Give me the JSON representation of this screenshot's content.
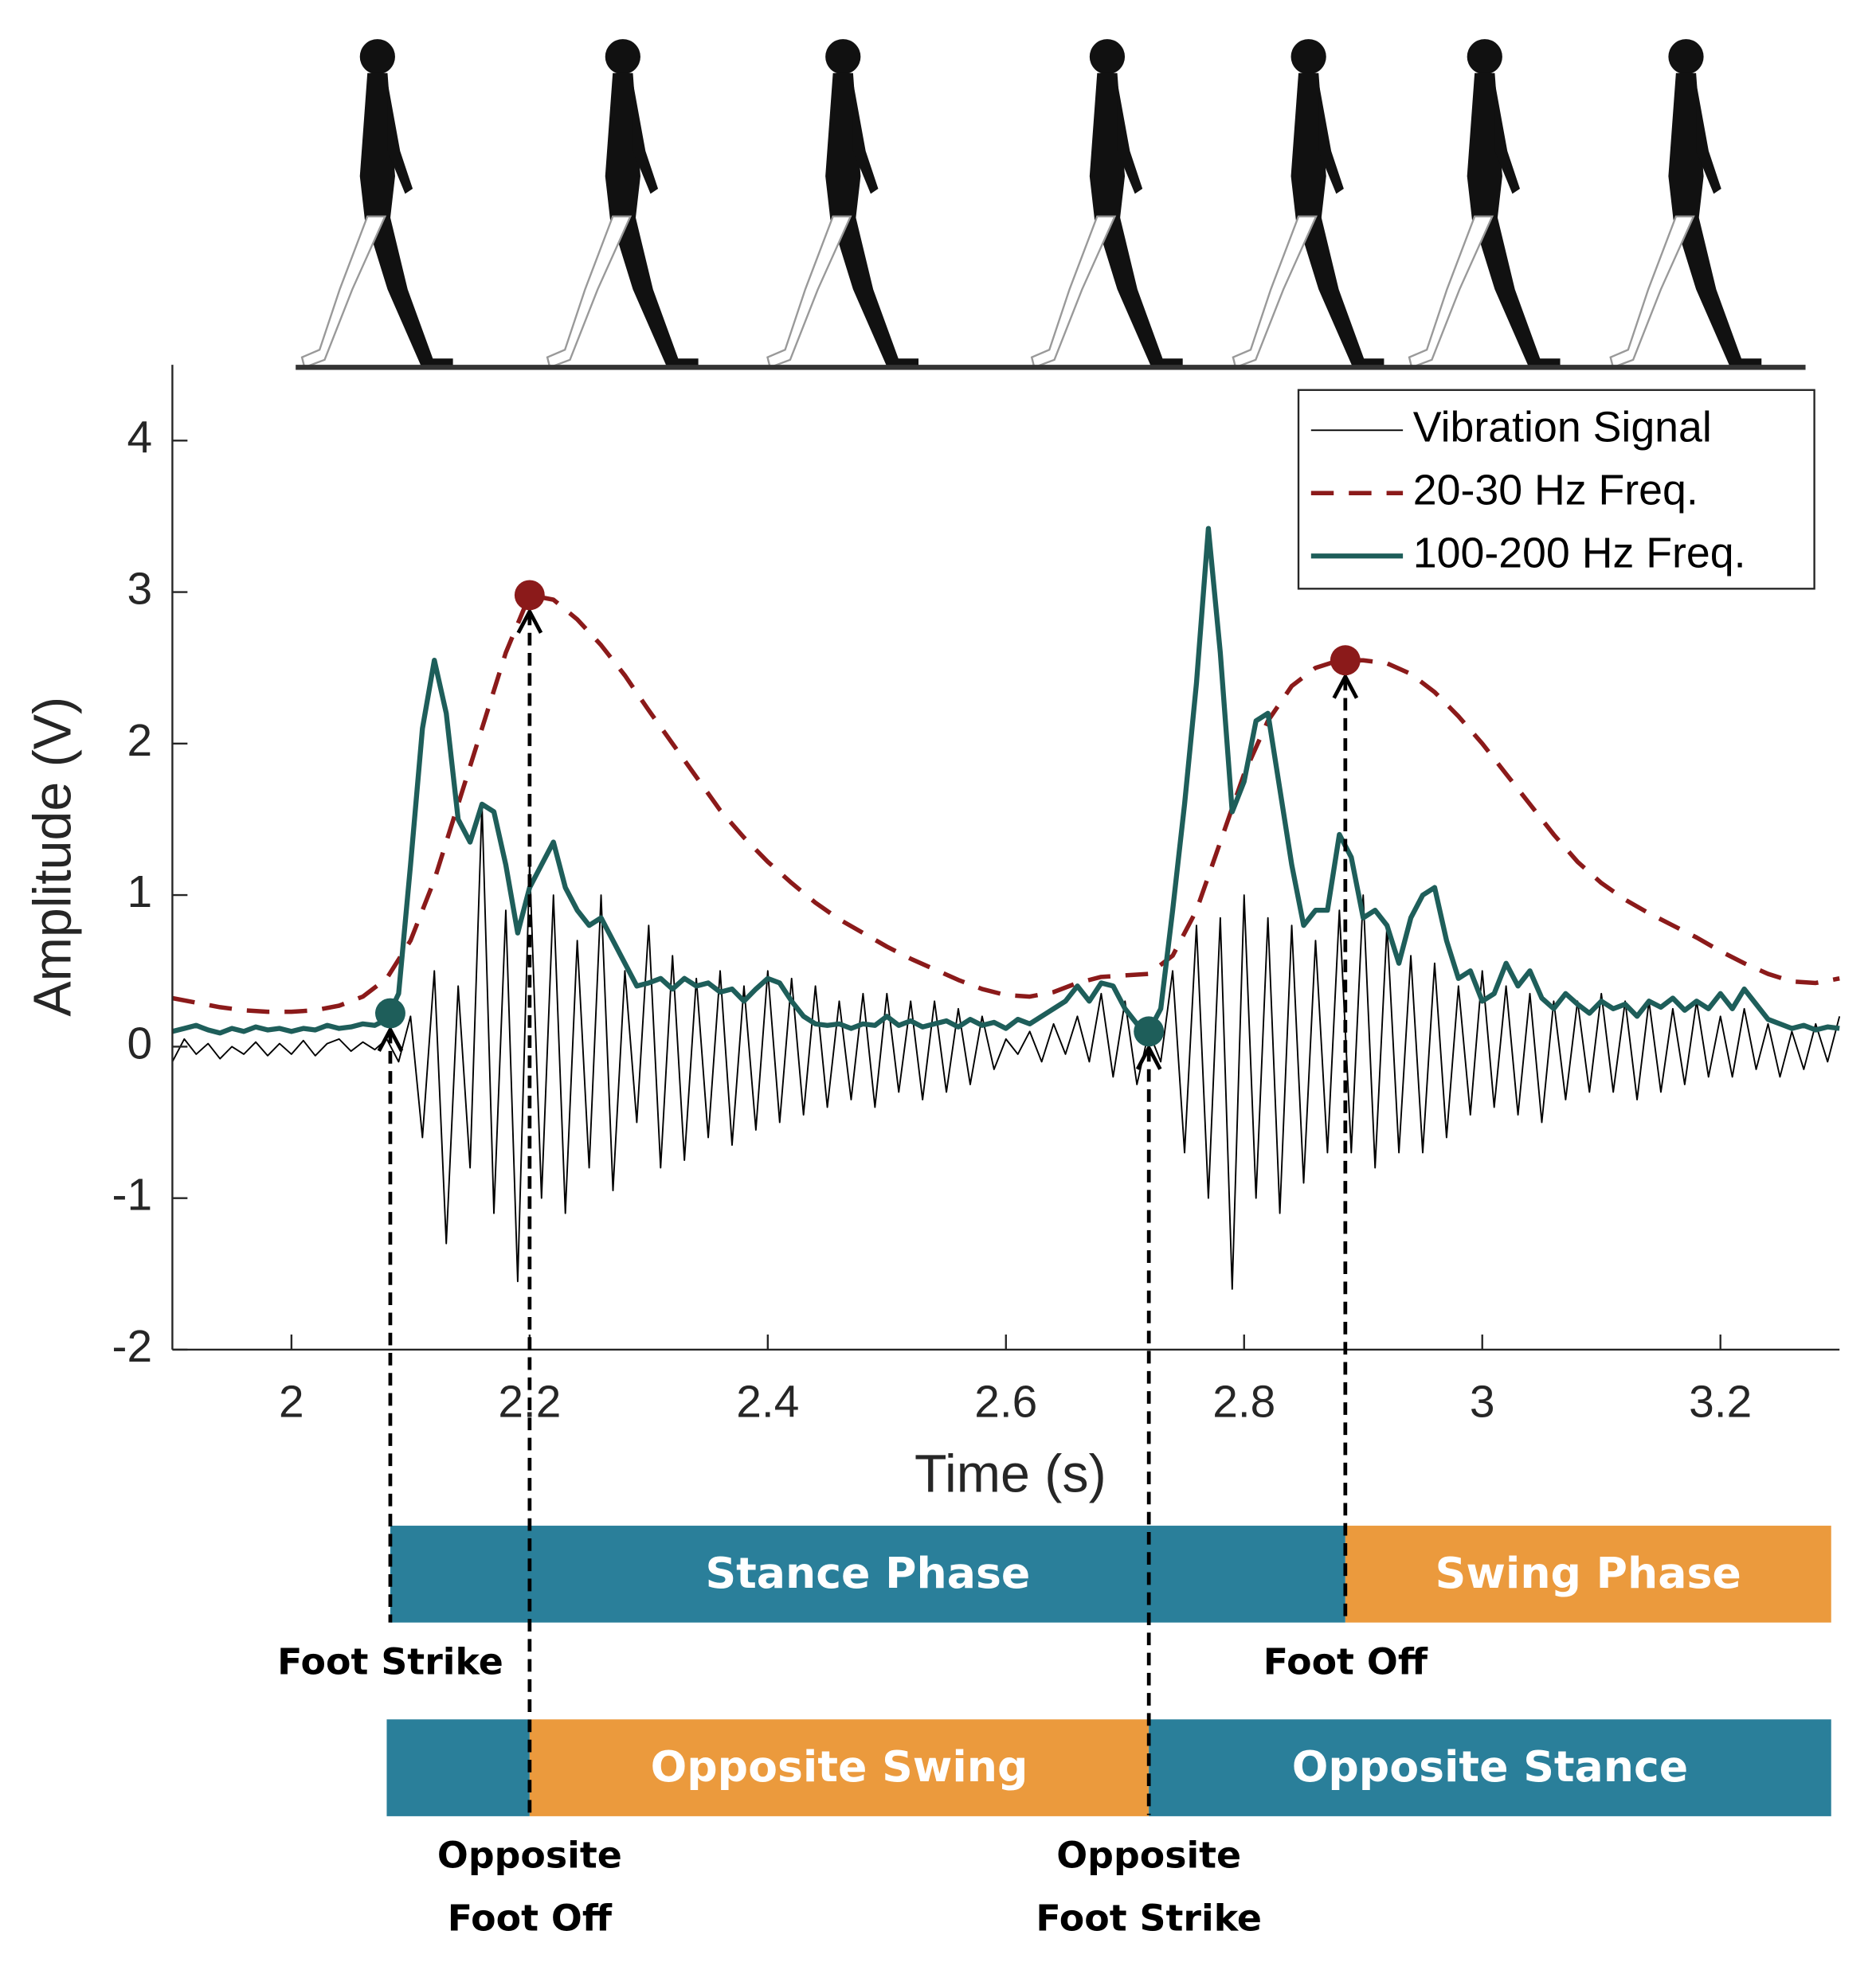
{
  "chart_data": {
    "type": "line",
    "xlabel": "Time (s)",
    "ylabel": "Amplitude (V)",
    "xlim": [
      1.9,
      3.3
    ],
    "ylim": [
      -2,
      4.5
    ],
    "xticks": [
      2,
      2.2,
      2.4,
      2.6,
      2.8,
      3,
      3.2
    ],
    "yticks": [
      -2,
      -1,
      0,
      1,
      2,
      3,
      4
    ],
    "legend": "upper right",
    "series": [
      {
        "name": "Vibration Signal",
        "color": "#000000",
        "style": "solid",
        "x": [
          1.9,
          1.91,
          1.92,
          1.93,
          1.94,
          1.95,
          1.96,
          1.97,
          1.98,
          1.99,
          2,
          2.01,
          2.02,
          2.03,
          2.04,
          2.05,
          2.06,
          2.07,
          2.08,
          2.09,
          2.1,
          2.11,
          2.12,
          2.13,
          2.14,
          2.15,
          2.16,
          2.17,
          2.18,
          2.19,
          2.2,
          2.21,
          2.22,
          2.23,
          2.24,
          2.25,
          2.26,
          2.27,
          2.28,
          2.29,
          2.3,
          2.31,
          2.32,
          2.33,
          2.34,
          2.35,
          2.36,
          2.37,
          2.38,
          2.39,
          2.4,
          2.41,
          2.42,
          2.43,
          2.44,
          2.45,
          2.46,
          2.47,
          2.48,
          2.49,
          2.5,
          2.51,
          2.52,
          2.53,
          2.54,
          2.55,
          2.56,
          2.57,
          2.58,
          2.59,
          2.6,
          2.61,
          2.62,
          2.63,
          2.64,
          2.65,
          2.66,
          2.67,
          2.68,
          2.69,
          2.7,
          2.71,
          2.72,
          2.73,
          2.74,
          2.75,
          2.76,
          2.77,
          2.78,
          2.79,
          2.8,
          2.81,
          2.82,
          2.83,
          2.84,
          2.85,
          2.86,
          2.87,
          2.88,
          2.89,
          2.9,
          2.91,
          2.92,
          2.93,
          2.94,
          2.95,
          2.96,
          2.97,
          2.98,
          2.99,
          3,
          3.01,
          3.02,
          3.03,
          3.04,
          3.05,
          3.06,
          3.07,
          3.08,
          3.09,
          3.1,
          3.11,
          3.12,
          3.13,
          3.14,
          3.15,
          3.16,
          3.17,
          3.18,
          3.19,
          3.2,
          3.21,
          3.22,
          3.23,
          3.24,
          3.25,
          3.26,
          3.27,
          3.28,
          3.29,
          3.3
        ],
        "values": [
          -0.1,
          0.05,
          -0.05,
          0.02,
          -0.08,
          0,
          -0.05,
          0.03,
          -0.06,
          0.02,
          -0.05,
          0.04,
          -0.06,
          0.02,
          0.05,
          -0.03,
          0.03,
          -0.02,
          0.05,
          -0.1,
          0.2,
          -0.6,
          0.5,
          -1.3,
          0.4,
          -0.8,
          1.6,
          -1.1,
          0.9,
          -1.55,
          1.2,
          -1,
          1,
          -1.1,
          0.7,
          -0.8,
          1,
          -0.95,
          0.5,
          -0.5,
          0.8,
          -0.8,
          0.6,
          -0.75,
          0.45,
          -0.6,
          0.5,
          -0.65,
          0.4,
          -0.55,
          0.5,
          -0.5,
          0.45,
          -0.45,
          0.4,
          -0.4,
          0.3,
          -0.35,
          0.35,
          -0.4,
          0.35,
          -0.3,
          0.3,
          -0.35,
          0.3,
          -0.3,
          0.25,
          -0.25,
          0.2,
          -0.15,
          0.05,
          -0.05,
          0.1,
          -0.1,
          0.15,
          -0.05,
          0.2,
          -0.1,
          0.35,
          -0.2,
          0.3,
          -0.25,
          0.1,
          -0.1,
          0.5,
          -0.7,
          0.8,
          -1,
          0.85,
          -1.6,
          1,
          -1,
          0.85,
          -1.1,
          0.8,
          -0.9,
          0.7,
          -0.7,
          0.9,
          -0.7,
          1,
          -0.8,
          0.8,
          -0.7,
          0.6,
          -0.7,
          0.55,
          -0.6,
          0.4,
          -0.45,
          0.5,
          -0.4,
          0.4,
          -0.45,
          0.35,
          -0.5,
          0.3,
          -0.35,
          0.3,
          -0.3,
          0.35,
          -0.3,
          0.3,
          -0.35,
          0.3,
          -0.3,
          0.25,
          -0.25,
          0.3,
          -0.2,
          0.2,
          -0.2,
          0.25,
          -0.15,
          0.15,
          -0.2,
          0.1,
          -0.15,
          0.15,
          -0.1,
          0.2
        ]
      },
      {
        "name": "20-30 Hz Freq.",
        "color": "#8b1a1a",
        "style": "dashed",
        "x": [
          1.9,
          1.92,
          1.94,
          1.96,
          1.98,
          2,
          2.02,
          2.04,
          2.06,
          2.08,
          2.1,
          2.12,
          2.14,
          2.16,
          2.18,
          2.2,
          2.22,
          2.24,
          2.26,
          2.28,
          2.3,
          2.32,
          2.34,
          2.36,
          2.38,
          2.4,
          2.42,
          2.44,
          2.46,
          2.48,
          2.5,
          2.52,
          2.54,
          2.56,
          2.58,
          2.6,
          2.62,
          2.64,
          2.66,
          2.68,
          2.7,
          2.72,
          2.74,
          2.76,
          2.78,
          2.8,
          2.82,
          2.84,
          2.86,
          2.88,
          2.9,
          2.92,
          2.94,
          2.96,
          2.98,
          3,
          3.02,
          3.04,
          3.06,
          3.08,
          3.1,
          3.12,
          3.14,
          3.16,
          3.18,
          3.2,
          3.22,
          3.24,
          3.26,
          3.28,
          3.3
        ],
        "values": [
          0.32,
          0.29,
          0.26,
          0.24,
          0.23,
          0.23,
          0.24,
          0.27,
          0.33,
          0.45,
          0.7,
          1.1,
          1.6,
          2.1,
          2.6,
          2.98,
          2.95,
          2.82,
          2.65,
          2.45,
          2.22,
          2,
          1.78,
          1.56,
          1.38,
          1.22,
          1.08,
          0.95,
          0.84,
          0.75,
          0.66,
          0.58,
          0.51,
          0.44,
          0.38,
          0.34,
          0.33,
          0.36,
          0.42,
          0.46,
          0.47,
          0.48,
          0.6,
          0.9,
          1.35,
          1.8,
          2.15,
          2.38,
          2.5,
          2.55,
          2.55,
          2.53,
          2.46,
          2.34,
          2.18,
          2,
          1.8,
          1.6,
          1.4,
          1.22,
          1.08,
          0.97,
          0.88,
          0.8,
          0.72,
          0.63,
          0.55,
          0.48,
          0.43,
          0.42,
          0.45
        ]
      },
      {
        "name": "100-200 Hz Freq.",
        "color": "#1e5e5a",
        "style": "solid-thick",
        "x": [
          1.9,
          1.91,
          1.92,
          1.93,
          1.94,
          1.95,
          1.96,
          1.97,
          1.98,
          1.99,
          2,
          2.01,
          2.02,
          2.03,
          2.04,
          2.05,
          2.06,
          2.07,
          2.08,
          2.09,
          2.1,
          2.11,
          2.12,
          2.13,
          2.14,
          2.15,
          2.16,
          2.17,
          2.18,
          2.19,
          2.2,
          2.21,
          2.22,
          2.23,
          2.24,
          2.25,
          2.26,
          2.27,
          2.28,
          2.29,
          2.3,
          2.31,
          2.32,
          2.33,
          2.34,
          2.35,
          2.36,
          2.37,
          2.38,
          2.39,
          2.4,
          2.41,
          2.42,
          2.43,
          2.44,
          2.45,
          2.46,
          2.47,
          2.48,
          2.49,
          2.5,
          2.51,
          2.52,
          2.53,
          2.54,
          2.55,
          2.56,
          2.57,
          2.58,
          2.59,
          2.6,
          2.61,
          2.62,
          2.63,
          2.64,
          2.65,
          2.66,
          2.67,
          2.68,
          2.69,
          2.7,
          2.71,
          2.72,
          2.73,
          2.74,
          2.75,
          2.76,
          2.77,
          2.78,
          2.79,
          2.8,
          2.81,
          2.82,
          2.83,
          2.84,
          2.85,
          2.86,
          2.87,
          2.88,
          2.89,
          2.9,
          2.91,
          2.92,
          2.93,
          2.94,
          2.95,
          2.96,
          2.97,
          2.98,
          2.99,
          3,
          3.01,
          3.02,
          3.03,
          3.04,
          3.05,
          3.06,
          3.07,
          3.08,
          3.09,
          3.1,
          3.11,
          3.12,
          3.13,
          3.14,
          3.15,
          3.16,
          3.17,
          3.18,
          3.19,
          3.2,
          3.21,
          3.22,
          3.23,
          3.24,
          3.25,
          3.26,
          3.27,
          3.28,
          3.29,
          3.3
        ],
        "values": [
          0.1,
          0.12,
          0.14,
          0.11,
          0.09,
          0.12,
          0.1,
          0.13,
          0.11,
          0.12,
          0.1,
          0.12,
          0.11,
          0.14,
          0.12,
          0.13,
          0.15,
          0.14,
          0.18,
          0.35,
          1.2,
          2.1,
          2.55,
          2.2,
          1.5,
          1.35,
          1.6,
          1.55,
          1.2,
          0.75,
          1.05,
          1.2,
          1.35,
          1.05,
          0.9,
          0.8,
          0.85,
          0.7,
          0.55,
          0.4,
          0.42,
          0.45,
          0.38,
          0.45,
          0.4,
          0.42,
          0.36,
          0.38,
          0.3,
          0.38,
          0.45,
          0.42,
          0.3,
          0.2,
          0.15,
          0.14,
          0.15,
          0.12,
          0.15,
          0.14,
          0.2,
          0.14,
          0.17,
          0.13,
          0.15,
          0.17,
          0.13,
          0.18,
          0.14,
          0.16,
          0.12,
          0.18,
          0.15,
          0.2,
          0.25,
          0.3,
          0.4,
          0.3,
          0.42,
          0.4,
          0.25,
          0.15,
          0.1,
          0.25,
          0.9,
          1.6,
          2.4,
          3.42,
          2.6,
          1.55,
          1.75,
          2.15,
          2.2,
          1.7,
          1.2,
          0.8,
          0.9,
          0.9,
          1.4,
          1.25,
          0.85,
          0.9,
          0.8,
          0.55,
          0.85,
          1,
          1.05,
          0.7,
          0.45,
          0.5,
          0.3,
          0.35,
          0.55,
          0.4,
          0.5,
          0.32,
          0.25,
          0.35,
          0.28,
          0.22,
          0.3,
          0.25,
          0.28,
          0.2,
          0.3,
          0.26,
          0.32,
          0.24,
          0.3,
          0.25,
          0.35,
          0.25,
          0.38,
          0.28,
          0.18,
          0.15,
          0.12,
          0.14,
          0.11,
          0.13,
          0.12
        ]
      }
    ],
    "events": [
      {
        "label": [
          "Foot Strike"
        ],
        "x": 2.083,
        "y": 0.22,
        "color": "#1e5e5a"
      },
      {
        "label": [
          "Foot Off"
        ],
        "x": 2.885,
        "y": 2.55,
        "color": "#8b1a1a"
      }
    ],
    "opposite_events": [
      {
        "label": [
          "Opposite",
          "Foot Off"
        ],
        "x": 2.2,
        "y": 2.98,
        "color": "#8b1a1a"
      },
      {
        "label": [
          "Opposite",
          "Foot Strike"
        ],
        "x": 2.72,
        "y": 0.1,
        "color": "#1e5e5a"
      }
    ],
    "phases": [
      {
        "label": "Stance Phase",
        "start": 2.083,
        "end": 2.885,
        "color": "#2a7f9a"
      },
      {
        "label": "Swing Phase",
        "start": 2.885,
        "end": 3.293,
        "color": "#eb9a3d"
      }
    ],
    "opposite_phases": [
      {
        "start": 2.08,
        "end": 2.2,
        "color": "#2a7f9a"
      },
      {
        "label": "Opposite Swing",
        "start": 2.2,
        "end": 2.72,
        "color": "#eb9a3d"
      },
      {
        "label": "Opposite Stance",
        "start": 2.72,
        "end": 3.293,
        "color": "#2a7f9a"
      }
    ]
  }
}
